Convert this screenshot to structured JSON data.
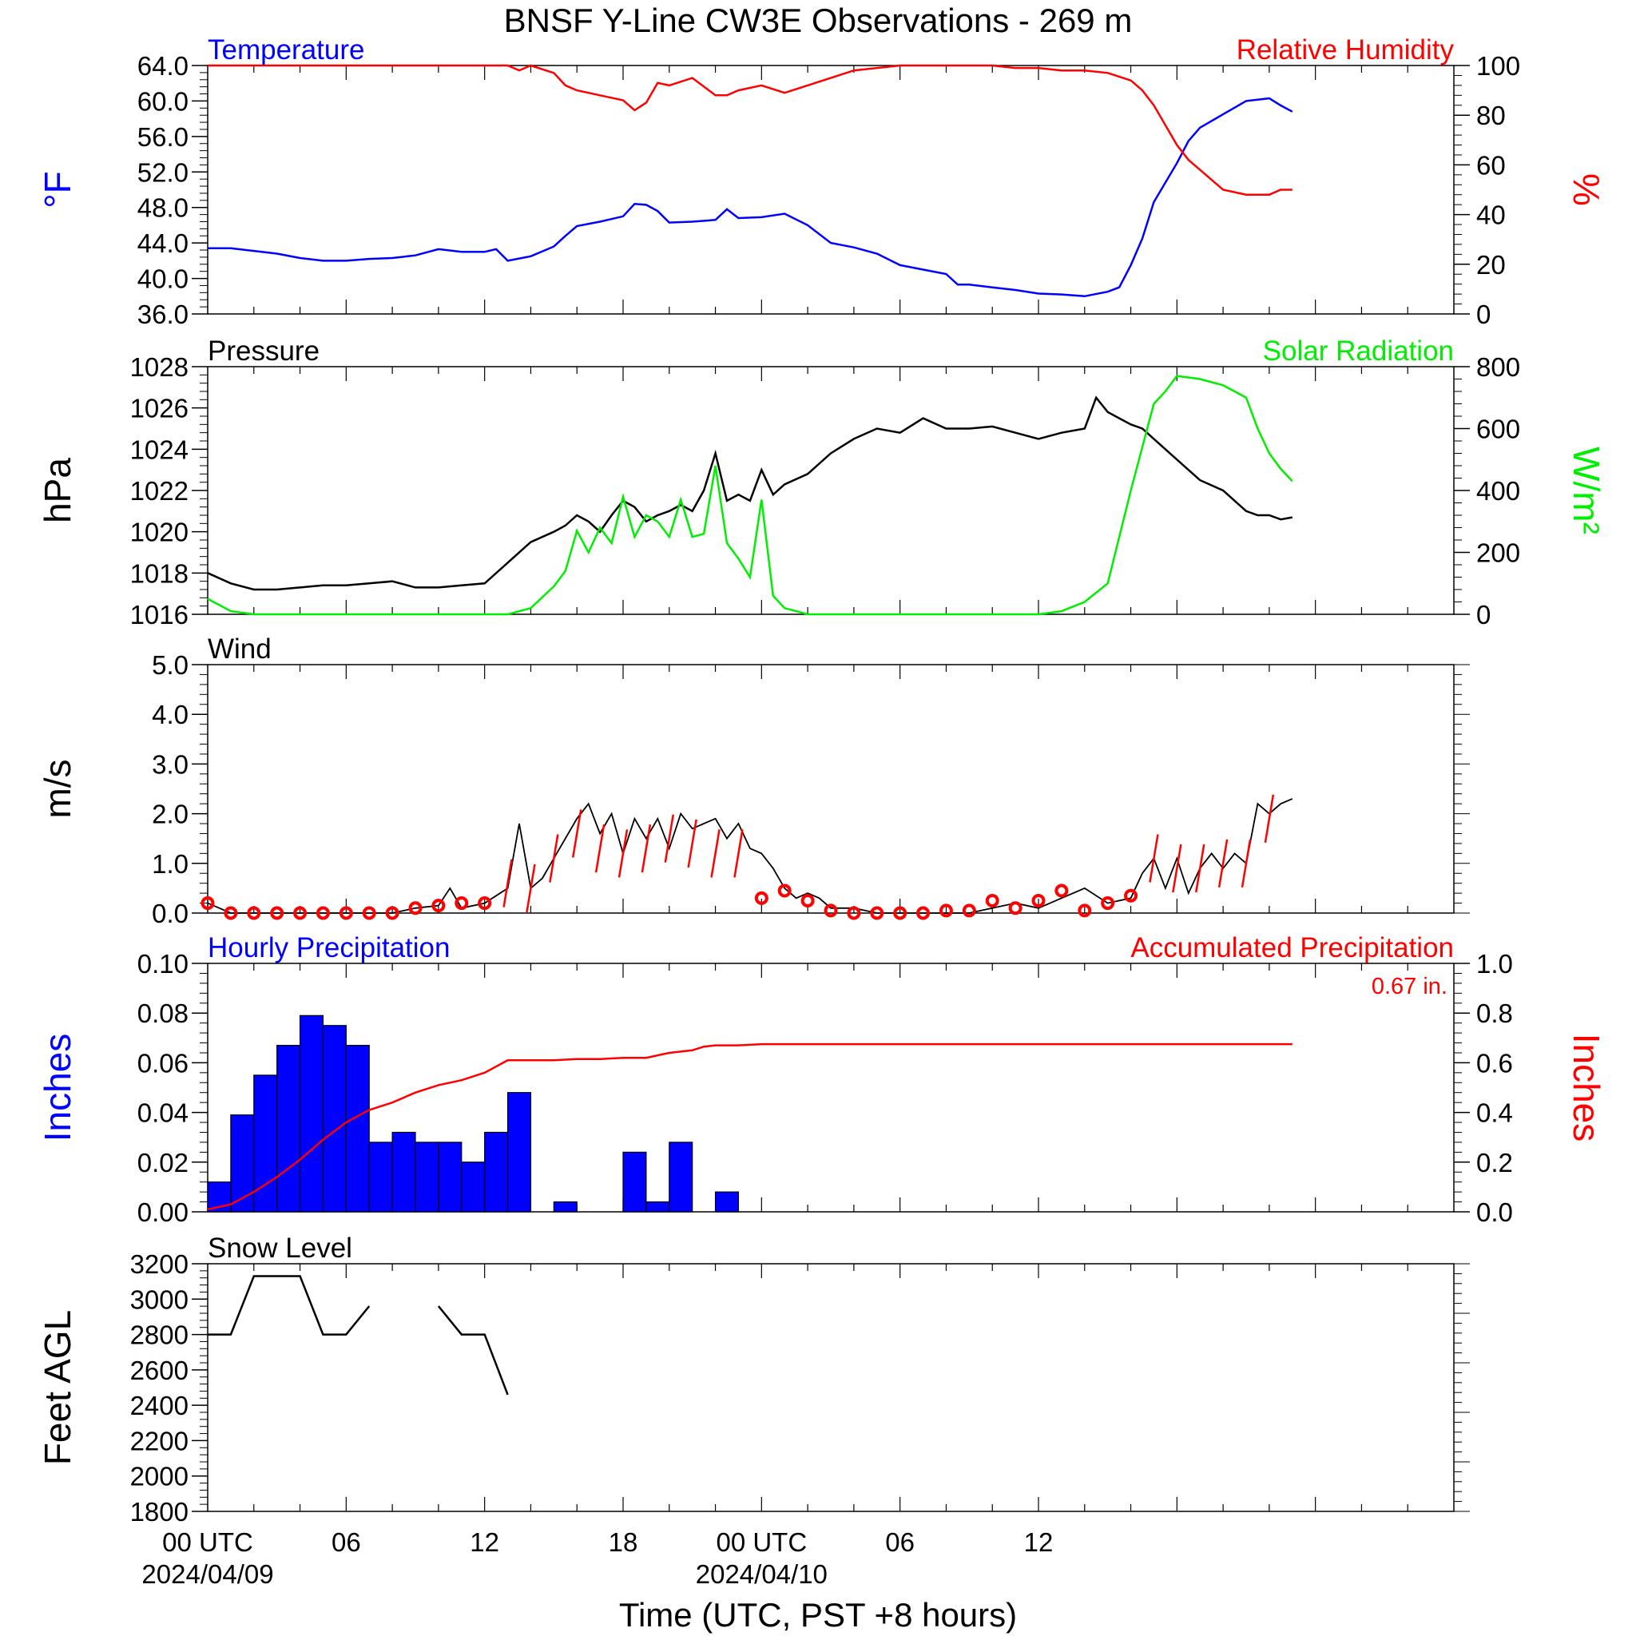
{
  "title": "BNSF Y-Line CW3E Observations - 269 m",
  "xlabel": "Time (UTC, PST +8 hours)",
  "x_ticks": [
    {
      "hour": 0,
      "label": "00 UTC",
      "date": "2024/04/09"
    },
    {
      "hour": 6,
      "label": "06",
      "date": ""
    },
    {
      "hour": 12,
      "label": "12",
      "date": ""
    },
    {
      "hour": 18,
      "label": "18",
      "date": ""
    },
    {
      "hour": 24,
      "label": "00 UTC",
      "date": "2024/04/10"
    },
    {
      "hour": 30,
      "label": "06",
      "date": ""
    },
    {
      "hour": 36,
      "label": "12",
      "date": ""
    }
  ],
  "colors": {
    "blue": "#0000ff",
    "red": "#ff0000",
    "green": "#00ee00",
    "black": "#000000"
  },
  "chart_data": [
    {
      "type": "line",
      "panel": "temperature-humidity",
      "left_label": "Temperature",
      "right_label": "Relative Humidity",
      "ylabel_left": "°F",
      "ylabel_right": "%",
      "ylim_left": [
        36,
        64
      ],
      "ylim_right": [
        0,
        100
      ],
      "yticks_left": [
        "36.0",
        "40.0",
        "44.0",
        "48.0",
        "52.0",
        "56.0",
        "60.0",
        "64.0"
      ],
      "yticks_right": [
        "0",
        "20",
        "40",
        "60",
        "80",
        "100"
      ],
      "series": [
        {
          "name": "Temperature",
          "axis": "left",
          "color": "blue",
          "x": [
            0,
            1,
            2,
            3,
            4,
            5,
            6,
            7,
            8,
            9,
            10,
            11,
            12,
            12.5,
            13,
            14,
            15,
            15.5,
            16,
            17,
            18,
            18.5,
            19,
            19.5,
            20,
            21,
            22,
            22.5,
            23,
            24,
            25,
            26,
            27,
            28,
            29,
            30,
            31,
            32,
            32.5,
            33,
            34,
            35,
            36,
            37,
            38,
            39,
            39.5,
            40,
            40.5,
            41,
            42,
            42.5,
            43,
            44,
            45,
            46,
            46.5,
            47
          ],
          "y": [
            43.4,
            43.4,
            43.1,
            42.8,
            42.3,
            42.0,
            42.0,
            42.2,
            42.3,
            42.6,
            43.3,
            43.0,
            43.0,
            43.3,
            42.0,
            42.5,
            43.6,
            44.8,
            45.9,
            46.4,
            47.0,
            48.4,
            48.3,
            47.6,
            46.3,
            46.4,
            46.6,
            47.8,
            46.8,
            46.9,
            47.3,
            46.0,
            44.0,
            43.5,
            42.8,
            41.5,
            41.0,
            40.5,
            39.3,
            39.3,
            39.0,
            38.7,
            38.3,
            38.2,
            38.0,
            38.5,
            39.0,
            41.5,
            44.5,
            48.6,
            53.0,
            55.5,
            57.0,
            58.5,
            60.0,
            60.3,
            59.5,
            58.8
          ]
        },
        {
          "name": "Relative Humidity",
          "axis": "right",
          "color": "red",
          "x": [
            0,
            1,
            2,
            3,
            4,
            5,
            6,
            7,
            8,
            9,
            10,
            11,
            12,
            13,
            13.5,
            14,
            15,
            15.5,
            16,
            17,
            18,
            18.5,
            19,
            19.5,
            20,
            21,
            22,
            22.5,
            23,
            24,
            25,
            26,
            27,
            28,
            29,
            30,
            31,
            32,
            33,
            34,
            35,
            36,
            37,
            38,
            39,
            40,
            40.5,
            41,
            42,
            42.5,
            43,
            44,
            45,
            46,
            46.5,
            47
          ],
          "y": [
            100,
            100,
            100,
            100,
            100,
            100,
            100,
            100,
            100,
            100,
            100,
            100,
            100,
            100,
            98,
            100,
            97,
            92,
            90,
            88,
            86,
            82,
            85,
            93,
            92,
            95,
            88,
            88,
            90,
            92,
            89,
            92,
            95,
            98,
            99,
            100,
            100,
            100,
            100,
            100,
            99,
            99,
            98,
            98,
            97,
            94,
            90,
            84,
            68,
            62,
            58,
            50,
            48,
            48,
            50,
            50
          ]
        }
      ]
    },
    {
      "type": "line",
      "panel": "pressure-solar",
      "left_label": "Pressure",
      "right_label": "Solar Radiation",
      "ylabel_left": "hPa",
      "ylabel_right": "W/m²",
      "ylim_left": [
        1016,
        1028
      ],
      "ylim_right": [
        0,
        800
      ],
      "yticks_left": [
        "1016",
        "1018",
        "1020",
        "1022",
        "1024",
        "1026",
        "1028"
      ],
      "yticks_right": [
        "0",
        "200",
        "400",
        "600",
        "800"
      ],
      "series": [
        {
          "name": "Pressure",
          "axis": "left",
          "color": "black",
          "x": [
            0,
            1,
            2,
            3,
            4,
            5,
            6,
            7,
            8,
            9,
            10,
            11,
            12,
            13,
            14,
            15,
            15.5,
            16,
            16.5,
            17,
            17.5,
            18,
            18.5,
            19,
            19.5,
            20,
            20.5,
            21,
            21.5,
            22,
            22.5,
            23,
            23.5,
            24,
            24.5,
            25,
            26,
            27,
            28,
            29,
            30,
            31,
            32,
            33,
            34,
            35,
            36,
            37,
            38,
            38.5,
            39,
            39.5,
            40,
            40.5,
            41,
            42,
            43,
            44,
            44.5,
            45,
            45.5,
            46,
            46.5,
            47
          ],
          "y": [
            1018.0,
            1017.5,
            1017.2,
            1017.2,
            1017.3,
            1017.4,
            1017.4,
            1017.5,
            1017.6,
            1017.3,
            1017.3,
            1017.4,
            1017.5,
            1018.5,
            1019.5,
            1020.0,
            1020.3,
            1020.8,
            1020.5,
            1020.0,
            1020.8,
            1021.5,
            1021.2,
            1020.5,
            1020.8,
            1021.0,
            1021.3,
            1021.0,
            1022.0,
            1023.8,
            1021.5,
            1021.8,
            1021.5,
            1023.0,
            1021.8,
            1022.3,
            1022.8,
            1023.8,
            1024.5,
            1025.0,
            1024.8,
            1025.5,
            1025.0,
            1025.0,
            1025.1,
            1024.8,
            1024.5,
            1024.8,
            1025.0,
            1026.5,
            1025.8,
            1025.5,
            1025.2,
            1025.0,
            1024.5,
            1023.5,
            1022.5,
            1022.0,
            1021.5,
            1021.0,
            1020.8,
            1020.8,
            1020.6,
            1020.7
          ]
        },
        {
          "name": "Solar Radiation",
          "axis": "right",
          "color": "green",
          "x": [
            0,
            1,
            2,
            3,
            4,
            5,
            6,
            7,
            8,
            9,
            10,
            11,
            12,
            13,
            14,
            15,
            15.5,
            16,
            16.5,
            17,
            17.5,
            18,
            18.5,
            19,
            19.5,
            20,
            20.5,
            21,
            21.5,
            22,
            22.5,
            23,
            23.5,
            24,
            24.5,
            25,
            25.5,
            26,
            27,
            28,
            29,
            30,
            31,
            32,
            33,
            34,
            35,
            36,
            37,
            38,
            39,
            40,
            40.5,
            41,
            41.5,
            42,
            43,
            44,
            44.5,
            45,
            45.5,
            46,
            46.5,
            47
          ],
          "y": [
            50,
            10,
            0,
            0,
            0,
            0,
            0,
            0,
            0,
            0,
            0,
            0,
            0,
            0,
            20,
            90,
            140,
            270,
            200,
            280,
            230,
            380,
            250,
            320,
            300,
            250,
            370,
            250,
            260,
            480,
            230,
            180,
            120,
            370,
            60,
            20,
            10,
            0,
            0,
            0,
            0,
            0,
            0,
            0,
            0,
            0,
            0,
            0,
            10,
            40,
            100,
            400,
            540,
            680,
            720,
            770,
            760,
            740,
            720,
            700,
            600,
            520,
            470,
            430
          ]
        }
      ]
    },
    {
      "type": "line",
      "panel": "wind",
      "left_label": "Wind",
      "ylabel_left": "m/s",
      "ylim_left": [
        0,
        5
      ],
      "yticks_left": [
        "0.0",
        "1.0",
        "2.0",
        "3.0",
        "4.0",
        "5.0"
      ],
      "series": [
        {
          "name": "Wind",
          "axis": "left",
          "color": "black",
          "x": [
            0,
            1,
            2,
            3,
            4,
            5,
            6,
            7,
            8,
            9,
            10,
            10.5,
            11,
            12,
            13,
            13.5,
            14,
            14.5,
            15,
            16,
            16.5,
            17,
            17.5,
            18,
            18.5,
            19,
            19.5,
            20,
            20.5,
            21,
            21.5,
            22,
            22.5,
            23,
            23.5,
            24,
            24.5,
            25,
            25.5,
            26,
            26.5,
            27,
            28,
            29,
            30,
            31,
            32,
            33,
            34,
            35,
            36,
            37,
            38,
            39,
            40,
            40.5,
            41,
            41.5,
            42,
            42.5,
            43,
            43.5,
            44,
            44.5,
            45,
            45.5,
            46,
            46.5,
            47
          ],
          "y": [
            0.2,
            0,
            0,
            0,
            0,
            0,
            0,
            0,
            0,
            0.1,
            0.15,
            0.5,
            0.1,
            0.2,
            0.5,
            1.8,
            0.5,
            0.7,
            1.1,
            1.9,
            2.2,
            1.6,
            2.0,
            1.2,
            1.9,
            1.5,
            1.9,
            1.3,
            2.0,
            1.7,
            1.8,
            1.9,
            1.5,
            1.8,
            1.3,
            1.2,
            0.9,
            0.5,
            0.3,
            0.4,
            0.3,
            0.1,
            0.1,
            0,
            0,
            0,
            0,
            0,
            0.1,
            0.2,
            0.1,
            0.3,
            0.5,
            0.2,
            0.3,
            0.8,
            1.1,
            0.5,
            1.1,
            0.4,
            0.9,
            1.2,
            0.9,
            1.2,
            1.0,
            2.2,
            2.0,
            2.2,
            2.3
          ]
        }
      ],
      "barbs": [
        {
          "x": 0,
          "speed": 0.2
        },
        {
          "x": 1,
          "speed": 0
        },
        {
          "x": 2,
          "speed": 0
        },
        {
          "x": 3,
          "speed": 0
        },
        {
          "x": 4,
          "speed": 0
        },
        {
          "x": 5,
          "speed": 0
        },
        {
          "x": 6,
          "speed": 0
        },
        {
          "x": 7,
          "speed": 0
        },
        {
          "x": 8,
          "speed": 0
        },
        {
          "x": 9,
          "speed": 0.1
        },
        {
          "x": 10,
          "speed": 0.15
        },
        {
          "x": 11,
          "speed": 0.2
        },
        {
          "x": 12,
          "speed": 0.2
        },
        {
          "x": 13,
          "speed": 0.6
        },
        {
          "x": 14,
          "speed": 0.5
        },
        {
          "x": 15,
          "speed": 1.1
        },
        {
          "x": 16,
          "speed": 1.6
        },
        {
          "x": 17,
          "speed": 1.3
        },
        {
          "x": 18,
          "speed": 1.2
        },
        {
          "x": 19,
          "speed": 1.3
        },
        {
          "x": 20,
          "speed": 1.5
        },
        {
          "x": 21,
          "speed": 1.4
        },
        {
          "x": 22,
          "speed": 1.2
        },
        {
          "x": 23,
          "speed": 1.2
        },
        {
          "x": 24,
          "speed": 0.3
        },
        {
          "x": 25,
          "speed": 0.45
        },
        {
          "x": 26,
          "speed": 0.25
        },
        {
          "x": 27,
          "speed": 0.05
        },
        {
          "x": 28,
          "speed": 0
        },
        {
          "x": 29,
          "speed": 0
        },
        {
          "x": 30,
          "speed": 0
        },
        {
          "x": 31,
          "speed": 0
        },
        {
          "x": 32,
          "speed": 0.05
        },
        {
          "x": 33,
          "speed": 0.05
        },
        {
          "x": 34,
          "speed": 0.25
        },
        {
          "x": 35,
          "speed": 0.1
        },
        {
          "x": 36,
          "speed": 0.25
        },
        {
          "x": 37,
          "speed": 0.45
        },
        {
          "x": 38,
          "speed": 0.05
        },
        {
          "x": 39,
          "speed": 0.2
        },
        {
          "x": 40,
          "speed": 0.35
        },
        {
          "x": 41,
          "speed": 1.1
        },
        {
          "x": 42,
          "speed": 0.9
        },
        {
          "x": 43,
          "speed": 0.9
        },
        {
          "x": 44,
          "speed": 1.0
        },
        {
          "x": 45,
          "speed": 1.0
        },
        {
          "x": 46,
          "speed": 1.9
        }
      ]
    },
    {
      "type": "bar",
      "panel": "precipitation",
      "left_label": "Hourly Precipitation",
      "right_label": "Accumulated Precipitation",
      "annotation": "0.67 in.",
      "ylabel_left": "Inches",
      "ylabel_right": "Inches",
      "ylim_left": [
        0,
        0.1
      ],
      "ylim_right": [
        0,
        1.0
      ],
      "yticks_left": [
        "0.00",
        "0.02",
        "0.04",
        "0.06",
        "0.08",
        "0.10"
      ],
      "yticks_right": [
        "0.0",
        "0.2",
        "0.4",
        "0.6",
        "0.8",
        "1.0"
      ],
      "hourly": [
        0.012,
        0.039,
        0.055,
        0.067,
        0.079,
        0.075,
        0.067,
        0.028,
        0.032,
        0.028,
        0.028,
        0.02,
        0.032,
        0.048,
        0,
        0.004,
        0,
        0,
        0.024,
        0.004,
        0.028,
        0,
        0.008
      ],
      "accumulated": {
        "name": "Accumulated Precipitation",
        "color": "red",
        "x": [
          0,
          1,
          2,
          3,
          4,
          5,
          6,
          7,
          8,
          9,
          10,
          11,
          12,
          13,
          14,
          15,
          16,
          17,
          18,
          19,
          19.5,
          20,
          21,
          21.5,
          22,
          23,
          24,
          25,
          30,
          35,
          40,
          45,
          47
        ],
        "y": [
          0.01,
          0.03,
          0.08,
          0.14,
          0.21,
          0.29,
          0.36,
          0.41,
          0.44,
          0.48,
          0.51,
          0.53,
          0.56,
          0.61,
          0.61,
          0.61,
          0.615,
          0.615,
          0.62,
          0.62,
          0.63,
          0.64,
          0.65,
          0.665,
          0.67,
          0.67,
          0.675,
          0.675,
          0.675,
          0.675,
          0.675,
          0.675,
          0.675
        ]
      }
    },
    {
      "type": "line",
      "panel": "snow-level",
      "left_label": "Snow Level",
      "ylabel_left": "Feet AGL",
      "ylim_left": [
        1800,
        3200
      ],
      "yticks_left": [
        "1800",
        "2000",
        "2200",
        "2400",
        "2600",
        "2800",
        "3000",
        "3200"
      ],
      "series": [
        {
          "name": "Snow Level",
          "axis": "left",
          "color": "black",
          "segments": [
            {
              "x": [
                0,
                1,
                2,
                3,
                4,
                5,
                6,
                7
              ],
              "y": [
                2800,
                2800,
                3130,
                3130,
                3130,
                2800,
                2800,
                2960
              ]
            },
            {
              "x": [
                10,
                11,
                12,
                13
              ],
              "y": [
                2960,
                2800,
                2800,
                2460
              ]
            }
          ]
        }
      ]
    }
  ]
}
